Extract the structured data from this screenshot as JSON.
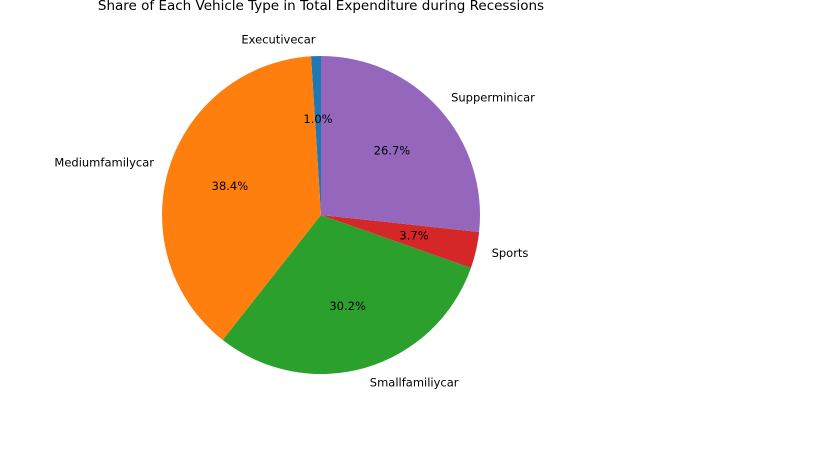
{
  "chart_data": {
    "type": "pie",
    "title": "Share of Each Vehicle Type in Total Expenditure during Recessions",
    "start_angle_deg": 90,
    "direction": "counterclockwise",
    "slices": [
      {
        "label": "Executivecar",
        "value": 1.0,
        "pct_label": "1.0%",
        "color": "#1f77b4"
      },
      {
        "label": "Mediumfamilycar",
        "value": 38.4,
        "pct_label": "38.4%",
        "color": "#ff7f0e"
      },
      {
        "label": "Smallfamiliycar",
        "value": 30.2,
        "pct_label": "30.2%",
        "color": "#2ca02c"
      },
      {
        "label": "Sports",
        "value": 3.7,
        "pct_label": "3.7%",
        "color": "#d62728"
      },
      {
        "label": "Supperminicar",
        "value": 26.7,
        "pct_label": "26.7%",
        "color": "#9467bd"
      }
    ]
  }
}
